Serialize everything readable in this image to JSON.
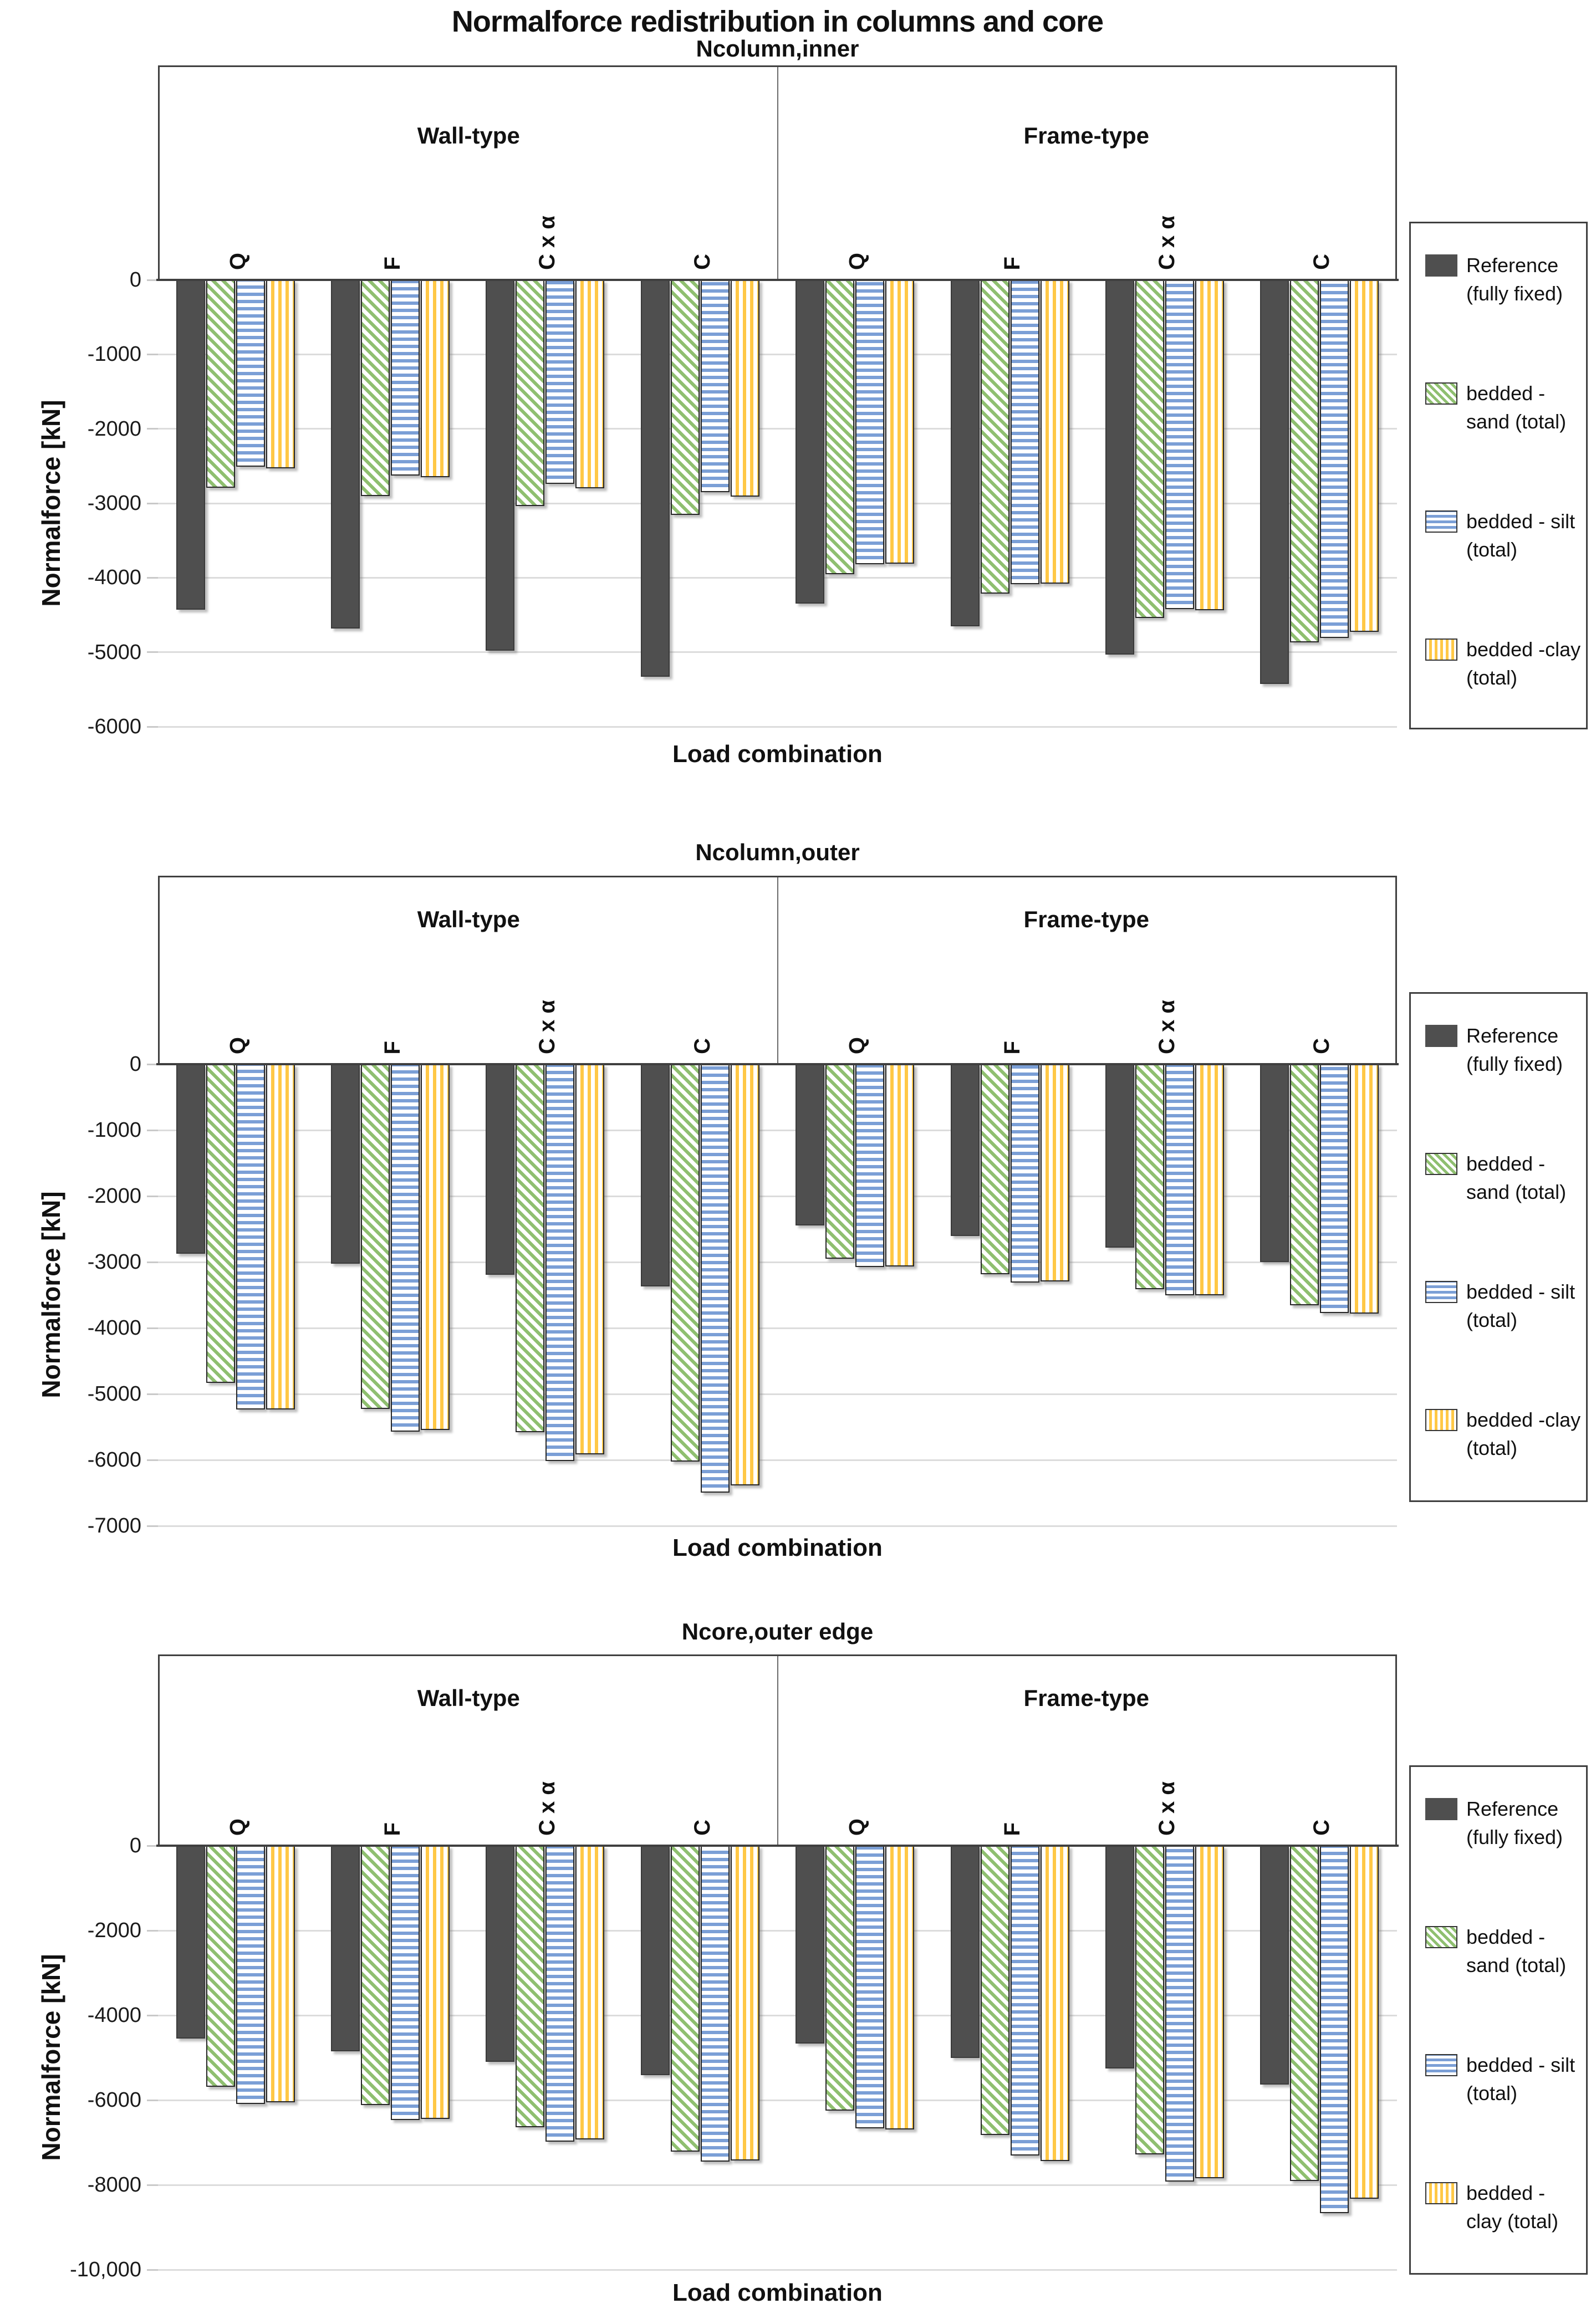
{
  "figure": {
    "title": "Normalforce redistribution in columns and core",
    "ylabel": "Normalforce [kN]",
    "xlabel": "Load combination",
    "sections": [
      "Wall-type",
      "Frame-type"
    ],
    "load_cases": [
      "Q",
      "F",
      "C x α",
      "C"
    ]
  },
  "colors": {
    "reference": "#4f4f4f",
    "sand_stripe": "#8fbf70",
    "silt_stripe": "#7b9fd6",
    "clay_stripe": "#ffc846",
    "gridline": "#dcdcdc",
    "axis_line": "#3f3f3f"
  },
  "chart_data": [
    {
      "type": "bar",
      "subtitle": "Ncolumn,inner",
      "xlabel": "Load combination",
      "ylabel": "Normalforce [kN]",
      "sections": [
        "Wall-type",
        "Frame-type"
      ],
      "categories": [
        "Wall Q",
        "Wall F",
        "Wall C x α",
        "Wall C",
        "Frame Q",
        "Frame F",
        "Frame C x α",
        "Frame C"
      ],
      "ylim": [
        0,
        -6000
      ],
      "ytick_step": 1000,
      "ytick_labels": [
        "0",
        "-1000",
        "-2000",
        "-3000",
        "-4000",
        "-5000",
        "-6000"
      ],
      "grid": true,
      "legend_position": "right",
      "legend": [
        [
          "Reference",
          "(fully fixed)"
        ],
        [
          "bedded -",
          "sand (total)"
        ],
        [
          "bedded - silt",
          "(total)"
        ],
        [
          "bedded -clay",
          "(total)"
        ]
      ],
      "series": [
        {
          "name": "Reference (fully fixed)",
          "values": [
            -4400,
            -4650,
            -4950,
            -5300,
            -4320,
            -4620,
            -5000,
            -5400
          ]
        },
        {
          "name": "bedded - sand (total)",
          "values": [
            -2760,
            -2870,
            -3010,
            -3130,
            -3920,
            -4180,
            -4510,
            -4840
          ]
        },
        {
          "name": "bedded - silt (total)",
          "values": [
            -2480,
            -2600,
            -2710,
            -2820,
            -3790,
            -4060,
            -4390,
            -4780
          ]
        },
        {
          "name": "bedded -clay (total)",
          "values": [
            -2500,
            -2620,
            -2770,
            -2880,
            -3780,
            -4050,
            -4410,
            -4700
          ]
        }
      ]
    },
    {
      "type": "bar",
      "subtitle": "Ncolumn,outer",
      "xlabel": "Load combination",
      "ylabel": "Normalforce [kN]",
      "sections": [
        "Wall-type",
        "Frame-type"
      ],
      "categories": [
        "Wall Q",
        "Wall F",
        "Wall C x α",
        "Wall C",
        "Frame Q",
        "Frame F",
        "Frame C x α",
        "Frame C"
      ],
      "ylim": [
        0,
        -7000
      ],
      "ytick_step": 1000,
      "ytick_labels": [
        "0",
        "-1000",
        "-2000",
        "-3000",
        "-4000",
        "-5000",
        "-6000",
        "-7000"
      ],
      "grid": true,
      "legend_position": "right",
      "legend": [
        [
          "Reference",
          "(fully fixed)"
        ],
        [
          "bedded -",
          "sand (total)"
        ],
        [
          "bedded - silt",
          "(total)"
        ],
        [
          "bedded -clay",
          "(total)"
        ]
      ],
      "series": [
        {
          "name": "Reference (fully fixed)",
          "values": [
            -2840,
            -2990,
            -3160,
            -3340,
            -2410,
            -2570,
            -2750,
            -2970
          ]
        },
        {
          "name": "bedded - sand (total)",
          "values": [
            -4800,
            -5190,
            -5550,
            -5990,
            -2920,
            -3150,
            -3380,
            -3620
          ]
        },
        {
          "name": "bedded - silt (total)",
          "values": [
            -5200,
            -5540,
            -5980,
            -6460,
            -3040,
            -3280,
            -3470,
            -3740
          ]
        },
        {
          "name": "bedded -clay (total)",
          "values": [
            -5200,
            -5510,
            -5880,
            -6350,
            -3030,
            -3260,
            -3470,
            -3750
          ]
        }
      ]
    },
    {
      "type": "bar",
      "subtitle": "Ncore,outer edge",
      "xlabel": "Load combination",
      "ylabel": "Normalforce [kN]",
      "sections": [
        "Wall-type",
        "Frame-type"
      ],
      "categories": [
        "Wall Q",
        "Wall F",
        "Wall C x α",
        "Wall C",
        "Frame Q",
        "Frame F",
        "Frame C x α",
        "Frame C"
      ],
      "ylim": [
        0,
        -10000
      ],
      "ytick_step": 2000,
      "ytick_labels": [
        "0",
        "-2000",
        "-4000",
        "-6000",
        "-8000",
        "-10,000"
      ],
      "grid": true,
      "legend_position": "right",
      "legend": [
        [
          "Reference",
          "(fully fixed)"
        ],
        [
          "bedded -",
          "sand (total)"
        ],
        [
          "bedded - silt",
          "(total)"
        ],
        [
          "bedded -",
          "clay (total)"
        ]
      ],
      "series": [
        {
          "name": "Reference (fully fixed)",
          "values": [
            -4500,
            -4800,
            -5040,
            -5360,
            -4610,
            -4950,
            -5200,
            -5580
          ]
        },
        {
          "name": "bedded - sand (total)",
          "values": [
            -5640,
            -6060,
            -6590,
            -7160,
            -6200,
            -6770,
            -7230,
            -7860
          ]
        },
        {
          "name": "bedded - silt (total)",
          "values": [
            -6040,
            -6420,
            -6930,
            -7400,
            -6620,
            -7260,
            -7870,
            -8620
          ]
        },
        {
          "name": "bedded - clay (total)",
          "values": [
            -6000,
            -6390,
            -6880,
            -7370,
            -6640,
            -7380,
            -7790,
            -8280
          ]
        }
      ]
    }
  ]
}
